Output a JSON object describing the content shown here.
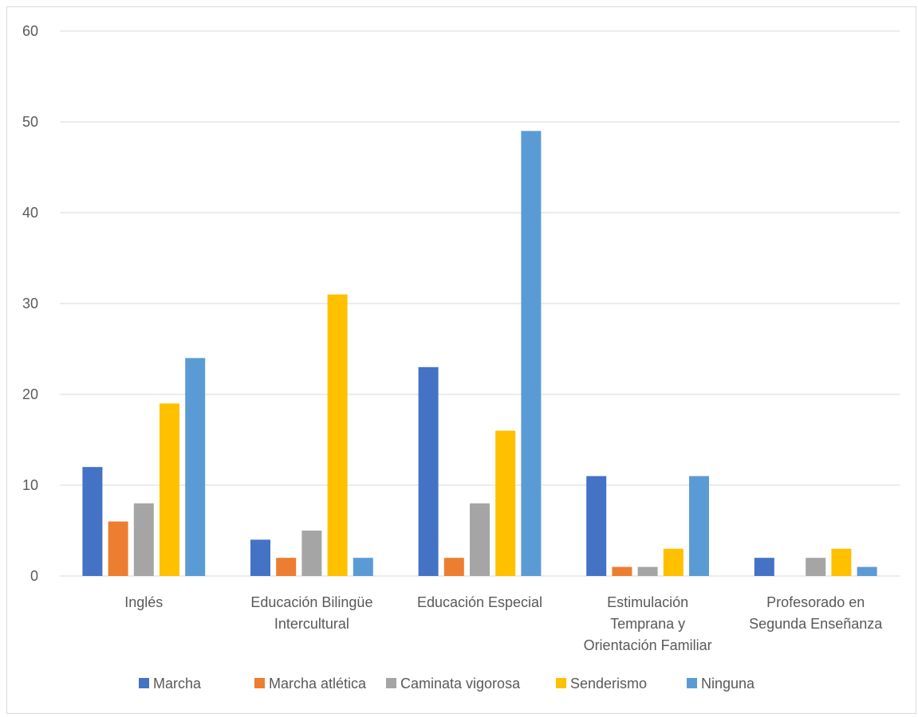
{
  "chart_data": {
    "type": "bar",
    "title": "",
    "xlabel": "",
    "ylabel": "",
    "ylim": [
      0,
      60
    ],
    "yticks": [
      0,
      10,
      20,
      30,
      40,
      50,
      60
    ],
    "grid": true,
    "legend_position": "bottom",
    "categories": [
      [
        "Inglés"
      ],
      [
        "Educación Bilingüe",
        "Intercultural"
      ],
      [
        "Educación Especial"
      ],
      [
        "Estimulación",
        "Temprana y",
        "Orientación Familiar"
      ],
      [
        "Profesorado en",
        "Segunda Enseñanza"
      ]
    ],
    "series": [
      {
        "name": "Marcha",
        "color": "#4472c4",
        "values": [
          12,
          4,
          23,
          11,
          2
        ]
      },
      {
        "name": "Marcha atlética",
        "color": "#ed7d31",
        "values": [
          6,
          2,
          2,
          1,
          0
        ]
      },
      {
        "name": "Caminata vigorosa",
        "color": "#a5a5a5",
        "values": [
          8,
          5,
          8,
          1,
          2
        ]
      },
      {
        "name": "Senderismo",
        "color": "#ffc000",
        "values": [
          19,
          31,
          16,
          3,
          3
        ]
      },
      {
        "name": "Ninguna",
        "color": "#5b9bd5",
        "values": [
          24,
          2,
          49,
          11,
          1
        ]
      }
    ]
  }
}
